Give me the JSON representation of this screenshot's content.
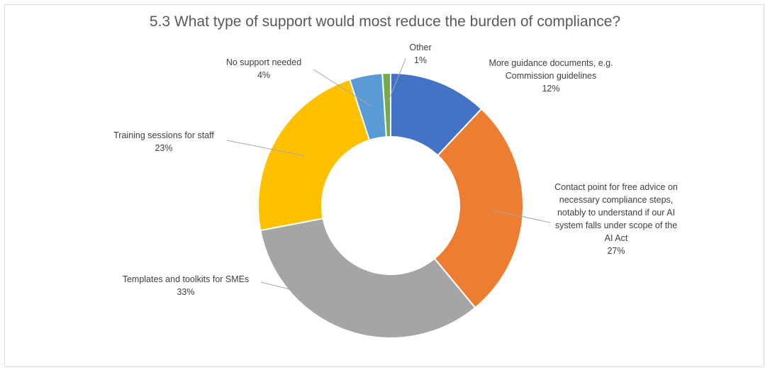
{
  "chart_data": {
    "type": "pie",
    "title": "5.3 What type of support would most reduce the burden of compliance?",
    "donut": true,
    "start": "12 o'clock, clockwise",
    "series": [
      {
        "name": "More guidance documents, e.g. Commission guidelines",
        "label_lines": [
          "More guidance documents, e.g.",
          "Commission guidelines"
        ],
        "percent_label": "12%",
        "value": 12,
        "color": "#4472C4"
      },
      {
        "name": "Contact point for free advice on necessary compliance steps, notably to understand if our AI system falls under scope of the AI Act",
        "label_lines": [
          "Contact point for free advice on",
          "necessary compliance steps,",
          "notably to understand if our AI",
          "system falls under scope of the",
          "AI Act"
        ],
        "percent_label": "27%",
        "value": 27,
        "color": "#ED7D31"
      },
      {
        "name": "Templates and toolkits for SMEs",
        "label_lines": [
          "Templates and toolkits for SMEs"
        ],
        "percent_label": "33%",
        "value": 33,
        "color": "#A5A5A5"
      },
      {
        "name": "Training sessions for staff",
        "label_lines": [
          "Training sessions for staff"
        ],
        "percent_label": "23%",
        "value": 23,
        "color": "#FFC000"
      },
      {
        "name": "No support needed",
        "label_lines": [
          "No support needed"
        ],
        "percent_label": "4%",
        "value": 4,
        "color": "#5B9BD5"
      },
      {
        "name": "Other",
        "label_lines": [
          "Other"
        ],
        "percent_label": "1%",
        "value": 1,
        "color": "#70AD47"
      }
    ]
  }
}
